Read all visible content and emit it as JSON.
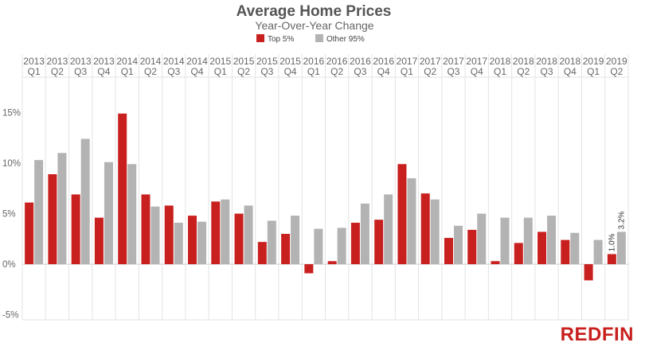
{
  "chart_data": {
    "type": "bar",
    "title": "Average Home Prices",
    "subtitle": "Year-Over-Year Change",
    "categories": [
      [
        "2013",
        "Q1"
      ],
      [
        "2013",
        "Q2"
      ],
      [
        "2013",
        "Q3"
      ],
      [
        "2013",
        "Q4"
      ],
      [
        "2014",
        "Q1"
      ],
      [
        "2014",
        "Q2"
      ],
      [
        "2014",
        "Q3"
      ],
      [
        "2014",
        "Q4"
      ],
      [
        "2015",
        "Q1"
      ],
      [
        "2015",
        "Q2"
      ],
      [
        "2015",
        "Q3"
      ],
      [
        "2015",
        "Q4"
      ],
      [
        "2016",
        "Q1"
      ],
      [
        "2016",
        "Q2"
      ],
      [
        "2016",
        "Q3"
      ],
      [
        "2016",
        "Q4"
      ],
      [
        "2017",
        "Q1"
      ],
      [
        "2017",
        "Q2"
      ],
      [
        "2017",
        "Q3"
      ],
      [
        "2017",
        "Q4"
      ],
      [
        "2018",
        "Q1"
      ],
      [
        "2018",
        "Q2"
      ],
      [
        "2018",
        "Q3"
      ],
      [
        "2018",
        "Q4"
      ],
      [
        "2019",
        "Q1"
      ],
      [
        "2019",
        "Q2"
      ]
    ],
    "series": [
      {
        "name": "Top 5%",
        "color": "#c8201e",
        "values": [
          6.1,
          8.9,
          6.9,
          4.6,
          14.9,
          6.9,
          5.8,
          4.8,
          6.2,
          5.0,
          2.2,
          3.0,
          -0.9,
          0.3,
          4.1,
          4.4,
          9.9,
          7.0,
          2.6,
          3.4,
          0.3,
          2.1,
          3.2,
          2.4,
          -1.6,
          1.0
        ]
      },
      {
        "name": "Other 95%",
        "color": "#b3b3b3",
        "values": [
          10.3,
          11.0,
          12.4,
          10.1,
          9.9,
          5.7,
          4.1,
          4.2,
          6.4,
          5.8,
          4.3,
          4.8,
          3.5,
          3.6,
          6.0,
          6.9,
          8.5,
          6.4,
          3.8,
          5.0,
          4.6,
          4.6,
          4.8,
          3.1,
          2.4,
          3.2
        ]
      }
    ],
    "ylim": [
      -5.5,
      18.5
    ],
    "yticks": [
      {
        "value": 15,
        "label": "15%"
      },
      {
        "value": 10,
        "label": "10%"
      },
      {
        "value": 5,
        "label": "5%"
      },
      {
        "value": 0,
        "label": "0%"
      },
      {
        "value": -5,
        "label": "-5%"
      }
    ],
    "annotations": [
      {
        "category_index": 25,
        "series": "Top 5%",
        "label": "1.0%"
      },
      {
        "category_index": 25,
        "series": "Other 95%",
        "label": "3.2%"
      }
    ],
    "grid": "vertical column separators",
    "legend_position": "top-center"
  },
  "brand": {
    "logo_text": "REDFIN",
    "color": "#c8201e"
  }
}
